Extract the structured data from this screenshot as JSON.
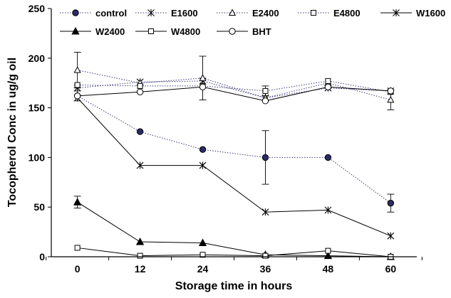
{
  "chart_data": {
    "type": "line",
    "title": "",
    "xlabel": "Storage time in hours",
    "ylabel": "Tocopherol Conc in ug/g oil",
    "x": [
      0,
      12,
      24,
      36,
      48,
      60
    ],
    "x_tick_labels": [
      "0",
      "12",
      "24",
      "36",
      "48",
      "60"
    ],
    "y_tick_labels": [
      "0",
      "50",
      "100",
      "150",
      "200",
      "250"
    ],
    "xlim": [
      -5,
      65
    ],
    "ylim": [
      0,
      250
    ],
    "grid": false,
    "legend_position": "top",
    "series": [
      {
        "name": "control",
        "values": [
          162,
          126,
          108,
          100,
          100,
          54
        ],
        "errors": [
          5,
          0,
          0,
          27,
          0,
          9
        ],
        "marker": "circle-filled",
        "line": "dotted",
        "color": "#2b2b66"
      },
      {
        "name": "E1600",
        "values": [
          170,
          176,
          177,
          160,
          170,
          167
        ],
        "errors": [
          0,
          0,
          0,
          0,
          0,
          0
        ],
        "marker": "star",
        "line": "dotted",
        "color": "#000000"
      },
      {
        "name": "E2400",
        "values": [
          188,
          175,
          180,
          160,
          175,
          158
        ],
        "errors": [
          18,
          0,
          22,
          0,
          0,
          10
        ],
        "marker": "triangle-open",
        "line": "dotted",
        "color": "#000000"
      },
      {
        "name": "E4800",
        "values": [
          173,
          172,
          172,
          167,
          177,
          166
        ],
        "errors": [
          0,
          0,
          0,
          5,
          0,
          0
        ],
        "marker": "square-open",
        "line": "dotted",
        "color": "#000000"
      },
      {
        "name": "W1600",
        "values": [
          160,
          92,
          92,
          45,
          47,
          21
        ],
        "errors": [
          0,
          0,
          0,
          0,
          0,
          0
        ],
        "marker": "star",
        "line": "solid",
        "color": "#000000"
      },
      {
        "name": "W2400",
        "values": [
          55,
          15,
          14,
          2,
          1,
          0
        ],
        "errors": [
          6,
          0,
          0,
          0,
          0,
          0
        ],
        "marker": "triangle-filled",
        "line": "solid",
        "color": "#000000"
      },
      {
        "name": "W4800",
        "values": [
          9,
          1,
          2,
          1,
          6,
          0
        ],
        "errors": [
          0,
          0,
          0,
          0,
          0,
          0
        ],
        "marker": "square-open",
        "line": "solid",
        "color": "#000000"
      },
      {
        "name": "BHT",
        "values": [
          162,
          166,
          171,
          157,
          171,
          167
        ],
        "errors": [
          0,
          0,
          0,
          0,
          0,
          0
        ],
        "marker": "circle-open",
        "line": "solid",
        "color": "#000000"
      }
    ]
  }
}
